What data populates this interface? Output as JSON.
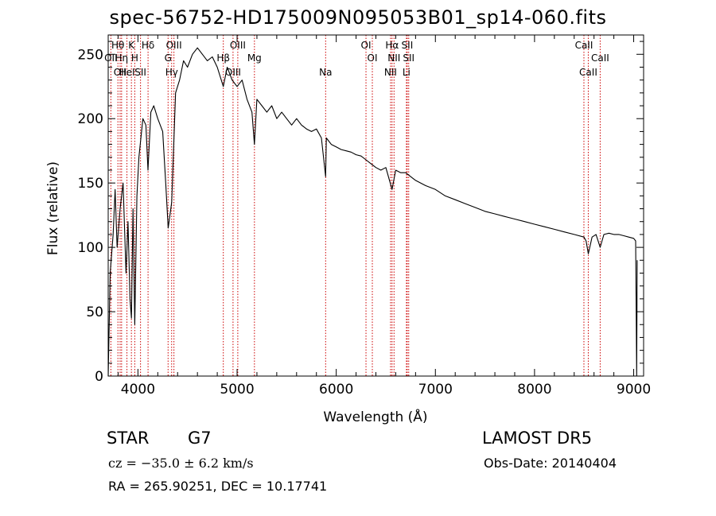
{
  "chart_data": {
    "type": "line",
    "title": "spec-56752-HD175009N095053B01_sp14-060.fits",
    "xlabel": "Wavelength (Å)",
    "ylabel": "Flux (relative)",
    "xlim": [
      3700,
      9100
    ],
    "ylim": [
      0,
      265
    ],
    "xticks": [
      4000,
      5000,
      6000,
      7000,
      8000,
      9000
    ],
    "yticks": [
      0,
      50,
      100,
      150,
      200,
      250
    ],
    "line_color": "#000000",
    "marker_color": "#cc0000",
    "series": [
      {
        "x": [
          3700,
          3720,
          3750,
          3770,
          3790,
          3820,
          3850,
          3880,
          3900,
          3920,
          3934,
          3950,
          3968,
          3990,
          4010,
          4050,
          4080,
          4101,
          4130,
          4160,
          4200,
          4250,
          4280,
          4305,
          4340,
          4380,
          4420,
          4460,
          4500,
          4550,
          4600,
          4650,
          4700,
          4750,
          4800,
          4861,
          4900,
          4950,
          5000,
          5050,
          5100,
          5150,
          5175,
          5200,
          5250,
          5300,
          5350,
          5400,
          5450,
          5500,
          5550,
          5600,
          5650,
          5700,
          5750,
          5800,
          5850,
          5893,
          5900,
          5950,
          6000,
          6050,
          6100,
          6150,
          6200,
          6250,
          6300,
          6350,
          6400,
          6450,
          6500,
          6563,
          6600,
          6650,
          6700,
          6750,
          6800,
          6900,
          7000,
          7100,
          7200,
          7300,
          7400,
          7500,
          7600,
          7700,
          7800,
          7900,
          8000,
          8100,
          8200,
          8300,
          8400,
          8498,
          8520,
          8542,
          8580,
          8620,
          8662,
          8700,
          8750,
          8800,
          8850,
          8900,
          8950,
          9000,
          9020,
          9030,
          9035
        ],
        "y": [
          0,
          80,
          110,
          145,
          100,
          130,
          150,
          80,
          120,
          60,
          45,
          130,
          40,
          140,
          170,
          200,
          195,
          160,
          205,
          210,
          200,
          190,
          150,
          115,
          135,
          220,
          230,
          245,
          240,
          250,
          255,
          250,
          245,
          248,
          240,
          225,
          240,
          230,
          225,
          230,
          215,
          205,
          180,
          215,
          210,
          205,
          210,
          200,
          205,
          200,
          195,
          200,
          195,
          192,
          190,
          192,
          185,
          155,
          185,
          180,
          178,
          176,
          175,
          174,
          172,
          171,
          168,
          165,
          162,
          160,
          162,
          145,
          160,
          158,
          158,
          155,
          152,
          148,
          145,
          140,
          137,
          134,
          131,
          128,
          126,
          124,
          122,
          120,
          118,
          116,
          114,
          112,
          110,
          108,
          105,
          95,
          108,
          110,
          100,
          110,
          111,
          110,
          110,
          109,
          108,
          107,
          105,
          0,
          90
        ]
      }
    ],
    "lines": [
      {
        "x": 3727,
        "row": 2,
        "label": "OII"
      },
      {
        "x": 3798,
        "row": 1,
        "label": "Hθ"
      },
      {
        "x": 3820,
        "row": 3,
        "label": "OII"
      },
      {
        "x": 3835,
        "row": 2,
        "label": "Hη"
      },
      {
        "x": 3889,
        "row": 3,
        "label": "HeI"
      },
      {
        "x": 3934,
        "row": 1,
        "label": "K"
      },
      {
        "x": 3968,
        "row": 2,
        "label": "H"
      },
      {
        "x": 4026,
        "row": 3,
        "label": "SII"
      },
      {
        "x": 4102,
        "row": 1,
        "label": "Hδ"
      },
      {
        "x": 4304,
        "row": 2,
        "label": "G"
      },
      {
        "x": 4340,
        "row": 3,
        "label": "Hγ"
      },
      {
        "x": 4363,
        "row": 1,
        "label": "OIII"
      },
      {
        "x": 4861,
        "row": 2,
        "label": "Hβ"
      },
      {
        "x": 4959,
        "row": 3,
        "label": "OIII"
      },
      {
        "x": 5007,
        "row": 1,
        "label": "OIII"
      },
      {
        "x": 5175,
        "row": 2,
        "label": "Mg"
      },
      {
        "x": 5893,
        "row": 3,
        "label": "Na"
      },
      {
        "x": 6300,
        "row": 1,
        "label": "OI"
      },
      {
        "x": 6364,
        "row": 2,
        "label": "OI"
      },
      {
        "x": 6548,
        "row": 3,
        "label": "NII"
      },
      {
        "x": 6563,
        "row": 1,
        "label": "Hα"
      },
      {
        "x": 6583,
        "row": 2,
        "label": "NII"
      },
      {
        "x": 6708,
        "row": 3,
        "label": "Li"
      },
      {
        "x": 6716,
        "row": 1,
        "label": "SII"
      },
      {
        "x": 6731,
        "row": 2,
        "label": "SII"
      },
      {
        "x": 8498,
        "row": 1,
        "label": "CaII"
      },
      {
        "x": 8542,
        "row": 3,
        "label": "CaII"
      },
      {
        "x": 8662,
        "row": 2,
        "label": "CaII"
      }
    ]
  },
  "info": {
    "obj_class": "STAR",
    "obj_subclass": "G7",
    "survey": "LAMOST DR5",
    "cz": "cz = −35.0 ± 6.2 km/s",
    "obs_date": "Obs-Date: 20140404",
    "radec": "RA = 265.90251, DEC =  10.17741"
  }
}
